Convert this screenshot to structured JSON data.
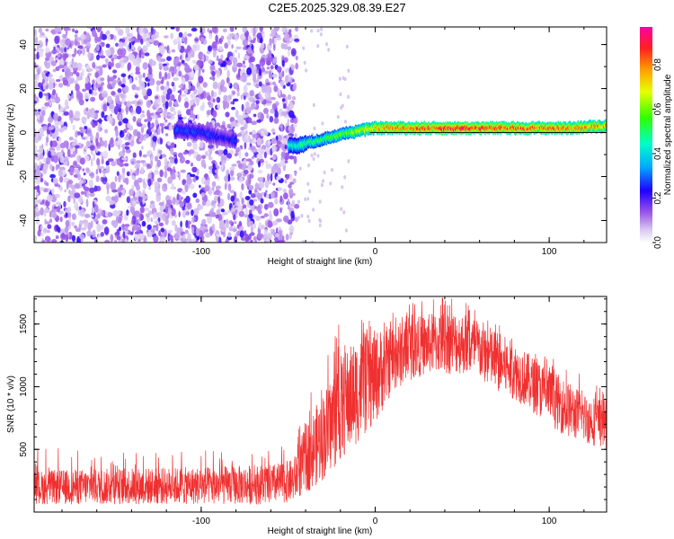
{
  "title": "C2E5.2025.329.08.39.E27",
  "chart_data": [
    {
      "type": "heatmap",
      "name": "spectrogram",
      "xlabel": "Height of straight line (km)",
      "ylabel": "Frequency (Hz)",
      "xlim": [
        -196,
        133
      ],
      "ylim": [
        -50,
        48
      ],
      "xticks": [
        -100,
        0,
        100
      ],
      "yticks": [
        -40,
        -20,
        0,
        20,
        40
      ],
      "colorbar": {
        "label": "Normalized spectral amplitude",
        "range": [
          0,
          0.97
        ],
        "ticks": [
          0.0,
          0.2,
          0.4,
          0.6,
          0.8
        ]
      },
      "noise_region_x": [
        -196,
        -45
      ],
      "signal_track": [
        {
          "x": -115,
          "y": 1,
          "amp": 0.3
        },
        {
          "x": -100,
          "y": 0,
          "amp": 0.3
        },
        {
          "x": -85,
          "y": -3,
          "amp": 0.25
        },
        {
          "x": -45,
          "y": -6,
          "amp": 0.5
        },
        {
          "x": -30,
          "y": -3,
          "amp": 0.55
        },
        {
          "x": -15,
          "y": 0,
          "amp": 0.65
        },
        {
          "x": 0,
          "y": 2,
          "amp": 0.8
        },
        {
          "x": 20,
          "y": 2,
          "amp": 0.9
        },
        {
          "x": 50,
          "y": 2,
          "amp": 0.95
        },
        {
          "x": 80,
          "y": 2,
          "amp": 0.9
        },
        {
          "x": 110,
          "y": 2,
          "amp": 0.85
        },
        {
          "x": 133,
          "y": 3,
          "amp": 0.8
        }
      ]
    },
    {
      "type": "line",
      "name": "snr",
      "xlabel": "Height of straight line (km)",
      "ylabel": "SNR (10 * v/v)",
      "xlim": [
        -196,
        133
      ],
      "ylim": [
        0,
        1720
      ],
      "xticks": [
        -100,
        0,
        100
      ],
      "yticks": [
        500,
        1000,
        1500
      ],
      "color": "#f03030",
      "envelope": {
        "x": [
          -196,
          -150,
          -100,
          -60,
          -47,
          -40,
          -30,
          -20,
          -10,
          0,
          10,
          20,
          30,
          40,
          50,
          60,
          70,
          80,
          90,
          100,
          110,
          120,
          133
        ],
        "low": [
          60,
          60,
          60,
          60,
          80,
          150,
          250,
          400,
          550,
          700,
          950,
          1050,
          1100,
          1100,
          1100,
          1050,
          950,
          900,
          800,
          700,
          600,
          550,
          500
        ],
        "high": [
          330,
          350,
          360,
          380,
          420,
          700,
          950,
          1250,
          1400,
          1450,
          1500,
          1550,
          1580,
          1620,
          1600,
          1540,
          1450,
          1350,
          1250,
          1150,
          1050,
          950,
          900
        ],
        "peaks": [
          520,
          500,
          500,
          500,
          550,
          900,
          1100,
          1650,
          1680,
          1450,
          1600,
          1700,
          1700,
          1720,
          1700,
          1620,
          1500,
          1450,
          1300,
          1250,
          1150,
          1100,
          1050
        ]
      }
    }
  ]
}
